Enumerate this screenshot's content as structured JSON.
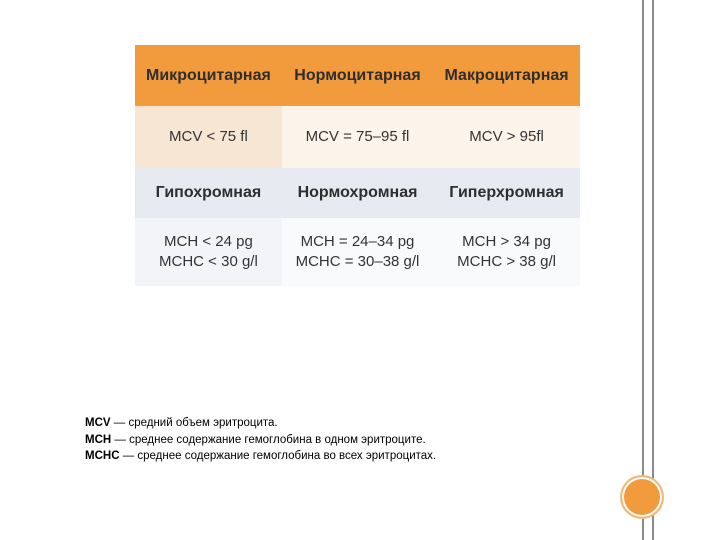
{
  "table": {
    "row1": {
      "c1": "Микроцитарная",
      "c2": "Нормоцитарная",
      "c3": "Макроцитарная"
    },
    "row2": {
      "c1": "MCV < 75 fl",
      "c2": "MCV = 75–95 fl",
      "c3": "MCV > 95fl"
    },
    "row3": {
      "c1": "Гипохромная",
      "c2": "Нормохромная",
      "c3": "Гиперхромная"
    },
    "row4": {
      "c1": "MCH < 24 pg\nMCHC < 30 g/l",
      "c2": "MCH = 24–34 pg\nMCHC = 30–38 g/l",
      "c3": "MCH > 34 pg\nMCHC > 38 g/l"
    },
    "colors": {
      "header_orange": "#f29b3d",
      "header_blue": "#e7ebf1",
      "cell_peach1": "#f8e6d4",
      "cell_peach2": "#fcf4ea",
      "cell_lightblue1": "#f2f4f8",
      "cell_lightblue2": "#f9fafc"
    },
    "font": {
      "header_size": 16,
      "cell_size": 15
    }
  },
  "notes": {
    "l1b": "MCV",
    "l1": " — средний объем эритроцита.",
    "l2b": "MCH",
    "l2": " — среднее содержание гемоглобина в одном эритроците.",
    "l3b": "MCHC",
    "l3": " — среднее содержание гемоглобина во всех эритроцитах."
  },
  "decor": {
    "circle_fill": "#f29b3d",
    "vline_color": "#8b8b8b"
  }
}
